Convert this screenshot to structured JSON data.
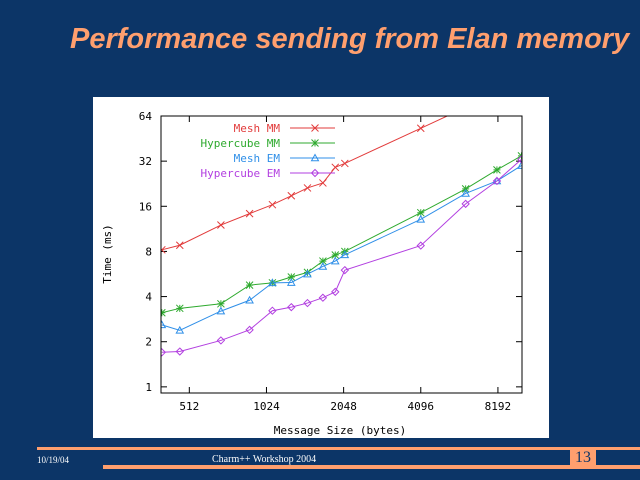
{
  "slide": {
    "title": "Performance sending from Elan memory",
    "footer_date": "10/19/04",
    "footer_text": "Charm++ Workshop 2004",
    "page_number": "13",
    "colors": {
      "background": "#0c3567",
      "accent": "#ff9f6e"
    }
  },
  "chart_data": {
    "type": "line",
    "title": "",
    "xlabel": "Message Size (bytes)",
    "ylabel": "Time (ms)",
    "xscale": "log2",
    "yscale": "log2",
    "xlim": [
      397,
      10170
    ],
    "ylim": [
      0.91,
      64
    ],
    "xticks": [
      512,
      1024,
      2048,
      4096,
      8192
    ],
    "xtick_labels": [
      "512",
      "1024",
      "2048",
      "4096",
      "8192"
    ],
    "yticks": [
      1,
      2,
      4,
      8,
      16,
      32,
      64
    ],
    "ytick_labels": [
      "1",
      "2",
      "4",
      "8",
      "16",
      "32",
      "64"
    ],
    "grid": false,
    "legend_position": "top-left",
    "x": [
      400,
      470,
      680,
      880,
      1080,
      1280,
      1480,
      1700,
      1900,
      2070,
      4096,
      6130,
      8120,
      10120
    ],
    "series": [
      {
        "name": "Mesh MM",
        "color": "#e23b3b",
        "marker": "cross",
        "values": [
          8.2,
          8.8,
          12.0,
          14.3,
          16.4,
          18.8,
          21.2,
          22.9,
          29.1,
          30.9,
          53,
          73,
          null,
          null
        ]
      },
      {
        "name": "Hypercube MM",
        "color": "#2faa2f",
        "marker": "star",
        "values": [
          3.12,
          3.34,
          3.58,
          4.77,
          4.94,
          5.4,
          5.8,
          6.9,
          7.57,
          8.0,
          14.5,
          20.9,
          28.0,
          34.7
        ]
      },
      {
        "name": "Mesh EM",
        "color": "#2f8fe8",
        "marker": "triangle",
        "values": [
          2.59,
          2.38,
          3.2,
          3.78,
          4.94,
          4.96,
          5.65,
          6.35,
          6.9,
          7.6,
          13.1,
          19.5,
          23.6,
          29.9
        ]
      },
      {
        "name": "Hypercube EM",
        "color": "#b23fe0",
        "marker": "diamond",
        "values": [
          1.7,
          1.72,
          2.04,
          2.4,
          3.22,
          3.4,
          3.62,
          3.93,
          4.3,
          6.0,
          8.75,
          16.6,
          23.6,
          32.9
        ]
      }
    ]
  }
}
